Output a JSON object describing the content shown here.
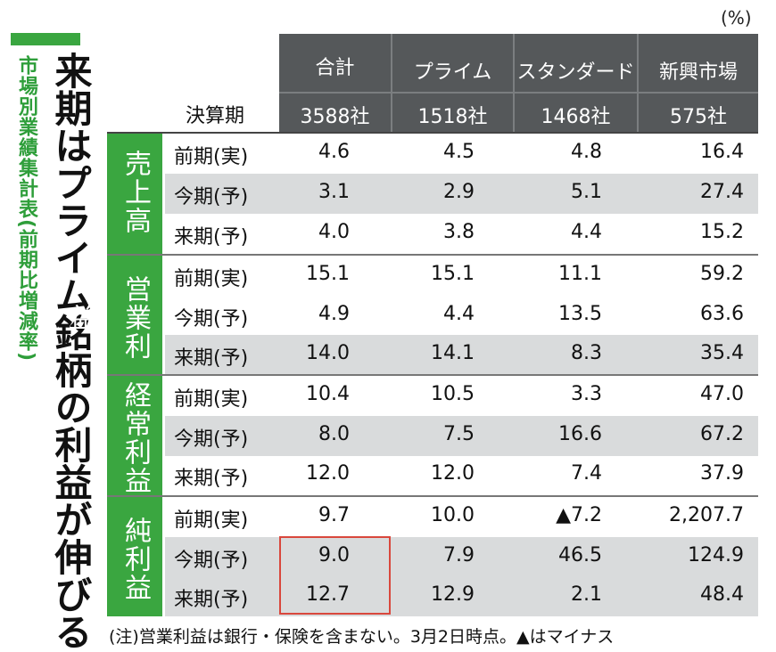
{
  "unit": "(%)",
  "title": "来期はプライム銘柄の利益が伸びる",
  "subtitle": "市場別業績集計表(前期比増減率)",
  "header": {
    "period_label": "決算期",
    "columns": [
      {
        "name": "合計",
        "count": "3588社"
      },
      {
        "name": "プライム",
        "count": "1518社"
      },
      {
        "name": "スタンダード",
        "count": "1468社"
      },
      {
        "name": "新興市場",
        "count": "575社"
      }
    ]
  },
  "groups": [
    {
      "name": "売上高",
      "rows": [
        {
          "label": "前期(実)",
          "values": [
            "4.6",
            "4.5",
            "4.8",
            "16.4"
          ]
        },
        {
          "label": "今期(予)",
          "values": [
            "3.1",
            "2.9",
            "5.1",
            "27.4"
          ]
        },
        {
          "label": "来期(予)",
          "values": [
            "4.0",
            "3.8",
            "4.4",
            "15.2"
          ]
        }
      ]
    },
    {
      "name": "営業利益",
      "rows": [
        {
          "label": "前期(実)",
          "values": [
            "15.1",
            "15.1",
            "11.1",
            "59.2"
          ]
        },
        {
          "label": "今期(予)",
          "values": [
            "4.9",
            "4.4",
            "13.5",
            "63.6"
          ]
        },
        {
          "label": "来期(予)",
          "values": [
            "14.0",
            "14.1",
            "8.3",
            "35.4"
          ]
        }
      ]
    },
    {
      "name": "経常利益",
      "rows": [
        {
          "label": "前期(実)",
          "values": [
            "10.4",
            "10.5",
            "3.3",
            "47.0"
          ]
        },
        {
          "label": "今期(予)",
          "values": [
            "8.0",
            "7.5",
            "16.6",
            "67.2"
          ]
        },
        {
          "label": "来期(予)",
          "values": [
            "12.0",
            "12.0",
            "7.4",
            "37.9"
          ]
        }
      ]
    },
    {
      "name": "純利益",
      "rows": [
        {
          "label": "前期(実)",
          "values": [
            "9.7",
            "10.0",
            "▲7.2",
            "2,207.7"
          ]
        },
        {
          "label": "今期(予)",
          "values": [
            "9.0",
            "7.9",
            "46.5",
            "124.9"
          ]
        },
        {
          "label": "来期(予)",
          "values": [
            "12.7",
            "12.9",
            "2.1",
            "48.4"
          ]
        }
      ]
    }
  ],
  "note": "(注)営業利益は銀行・保険を含まない。3月2日時点。▲はマイナス",
  "colors": {
    "green": "#3aa640",
    "header": "#55585a",
    "highlight": "#d9473c",
    "row_shade": "#d9dbdc"
  }
}
